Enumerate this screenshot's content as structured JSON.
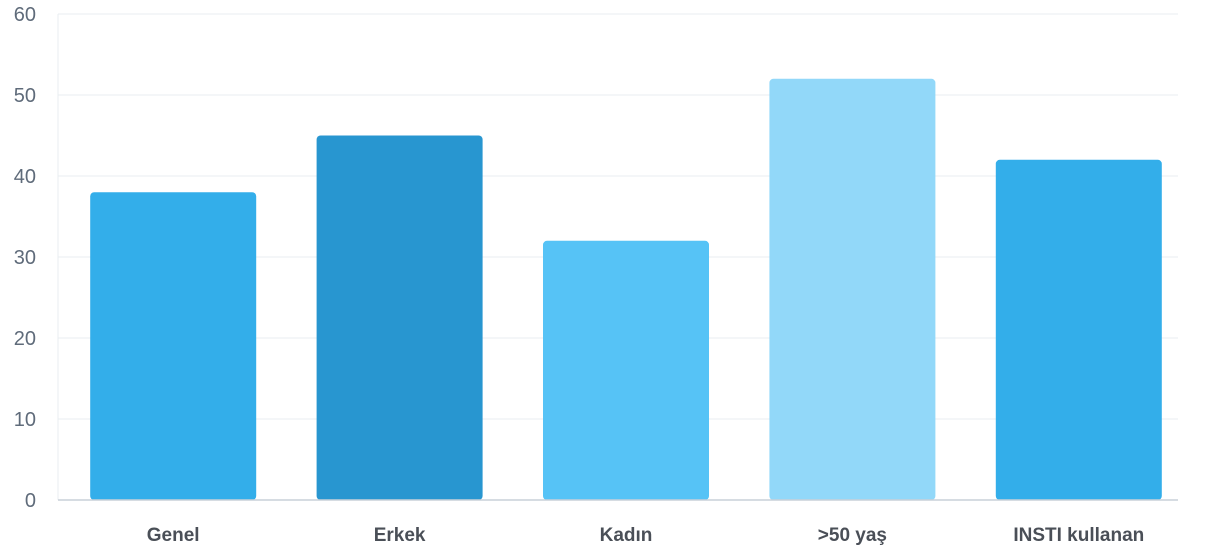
{
  "chart_data": {
    "type": "bar",
    "categories": [
      "Genel",
      "Erkek",
      "Kadın",
      ">50 yaş",
      "INSTI kullanan"
    ],
    "values": [
      38,
      45,
      32,
      52,
      42
    ],
    "colors": [
      "#33aeea",
      "#2896d0",
      "#56c3f6",
      "#92d8f9",
      "#33aeea"
    ],
    "ylim": [
      0,
      60
    ],
    "yticks": [
      0,
      10,
      20,
      30,
      40,
      50,
      60
    ],
    "grid": true,
    "title": "",
    "xlabel": "",
    "ylabel": ""
  }
}
